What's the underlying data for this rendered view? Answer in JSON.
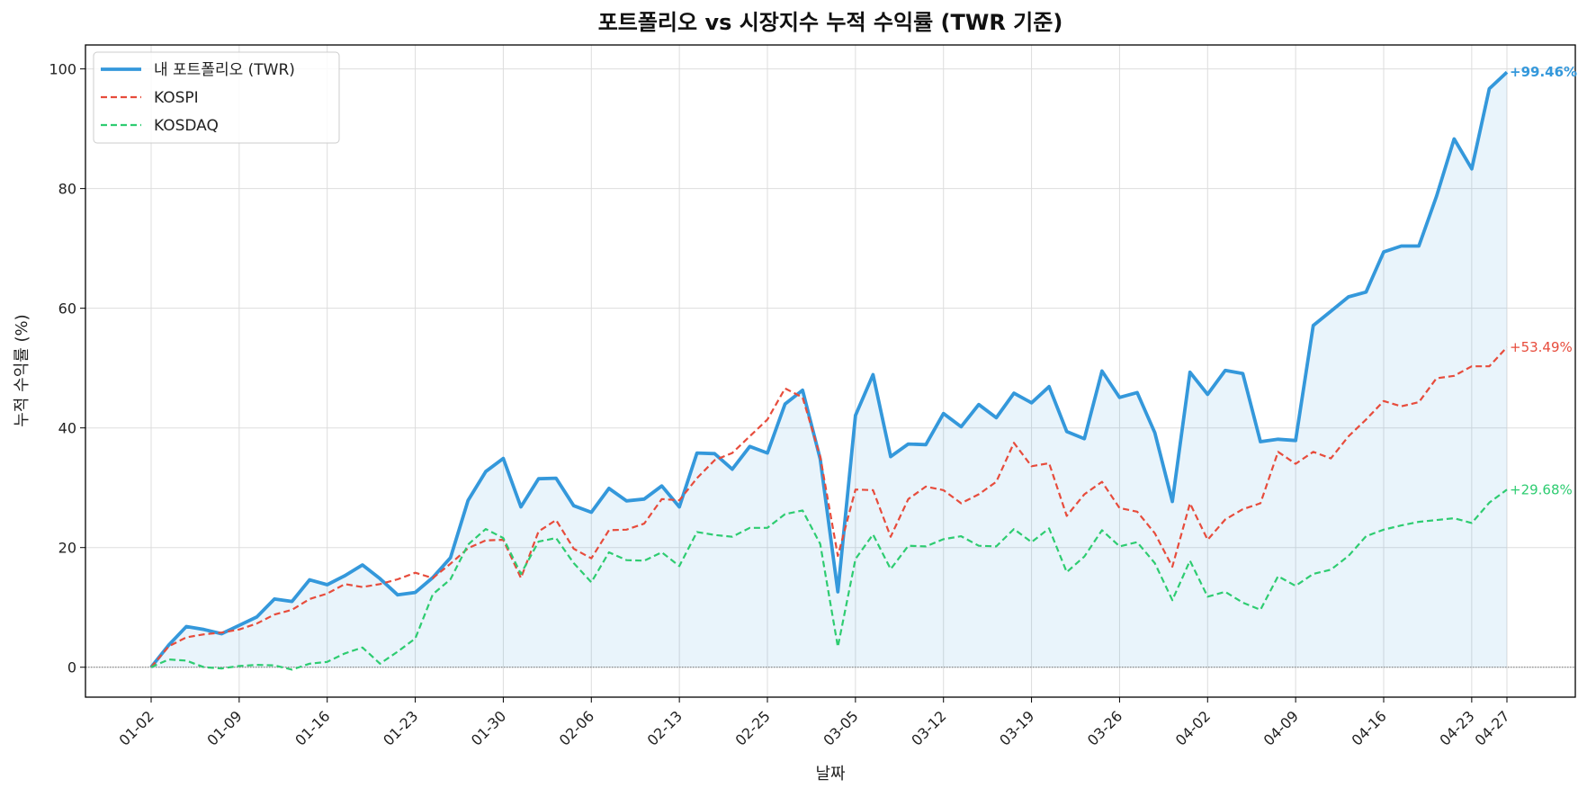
{
  "chart_data": {
    "type": "line",
    "title": "포트폴리오 vs 시장지수 누적 수익률 (TWR 기준)",
    "xlabel": "날짜",
    "ylabel": "누적 수익률 (%)",
    "ylim": [
      -5,
      104
    ],
    "yticks": [
      0,
      20,
      40,
      60,
      80,
      100
    ],
    "grid": true,
    "legend_position": "top-left",
    "baseline_zero": true,
    "xticks": [
      {
        "index": 0,
        "label": "01-02"
      },
      {
        "index": 5,
        "label": "01-09"
      },
      {
        "index": 10,
        "label": "01-16"
      },
      {
        "index": 15,
        "label": "01-23"
      },
      {
        "index": 20,
        "label": "01-30"
      },
      {
        "index": 25,
        "label": "02-06"
      },
      {
        "index": 30,
        "label": "02-13"
      },
      {
        "index": 35,
        "label": "02-25"
      },
      {
        "index": 40,
        "label": "03-05"
      },
      {
        "index": 45,
        "label": "03-12"
      },
      {
        "index": 50,
        "label": "03-19"
      },
      {
        "index": 55,
        "label": "03-26"
      },
      {
        "index": 60,
        "label": "04-02"
      },
      {
        "index": 65,
        "label": "04-09"
      },
      {
        "index": 70,
        "label": "04-16"
      },
      {
        "index": 75,
        "label": "04-23"
      },
      {
        "index": 77,
        "label": "04-27"
      }
    ],
    "series": [
      {
        "name": "내 포트폴리오 (TWR)",
        "color": "#3498db",
        "style": "solid",
        "fill": true,
        "end_label": "+99.46%",
        "values": [
          0,
          3.7,
          6.8,
          6.3,
          5.6,
          7.0,
          8.4,
          11.4,
          11.0,
          14.6,
          13.8,
          15.3,
          17.1,
          14.8,
          12.1,
          12.5,
          15.0,
          18.3,
          27.9,
          32.7,
          34.9,
          26.8,
          31.5,
          31.6,
          27.0,
          25.9,
          29.9,
          27.8,
          28.1,
          30.3,
          26.8,
          35.8,
          35.7,
          33.1,
          36.9,
          35.8,
          44.0,
          46.3,
          34.8,
          12.6,
          42.1,
          48.9,
          35.2,
          37.3,
          37.2,
          42.4,
          40.2,
          43.9,
          41.7,
          45.8,
          44.2,
          46.9,
          39.4,
          38.2,
          49.5,
          45.1,
          45.9,
          39.2,
          27.7,
          49.3,
          45.6,
          49.6,
          49.1,
          37.7,
          38.1,
          37.9,
          57.1,
          59.5,
          61.9,
          62.7,
          69.4,
          70.4,
          70.4,
          78.7,
          88.3,
          83.3,
          96.7,
          99.46
        ]
      },
      {
        "name": "KOSPI",
        "color": "#e74c3c",
        "style": "dashed",
        "end_label": "+53.49%",
        "values": [
          0,
          3.5,
          5.0,
          5.5,
          5.8,
          6.3,
          7.3,
          8.8,
          9.6,
          11.4,
          12.3,
          13.9,
          13.4,
          13.9,
          14.7,
          15.8,
          14.9,
          17.3,
          19.9,
          21.2,
          21.3,
          14.9,
          22.7,
          24.6,
          19.8,
          18.2,
          22.9,
          23.0,
          24.0,
          28.1,
          27.9,
          31.6,
          34.6,
          35.8,
          38.6,
          41.4,
          46.6,
          45.1,
          35.2,
          18.6,
          29.7,
          29.6,
          21.8,
          28.1,
          30.2,
          29.6,
          27.4,
          28.9,
          31.0,
          37.5,
          33.6,
          34.1,
          25.3,
          28.9,
          31.0,
          26.6,
          26.0,
          22.4,
          16.8,
          27.4,
          21.3,
          24.7,
          26.4,
          27.4,
          36.0,
          34.0,
          36.0,
          34.9,
          38.6,
          41.4,
          44.5,
          43.6,
          44.3,
          48.3,
          48.7,
          50.3,
          50.3,
          53.49
        ]
      },
      {
        "name": "KOSDAQ",
        "color": "#2ecc71",
        "style": "dashed",
        "end_label": "+29.68%",
        "values": [
          0,
          1.3,
          1.1,
          0.0,
          -0.2,
          0.2,
          0.4,
          0.3,
          -0.4,
          0.6,
          0.9,
          2.3,
          3.3,
          0.6,
          2.6,
          4.8,
          12.2,
          14.7,
          20.5,
          23.1,
          21.6,
          15.6,
          21.0,
          21.6,
          17.4,
          14.2,
          19.2,
          17.9,
          17.8,
          19.2,
          16.9,
          22.6,
          22.1,
          21.8,
          23.3,
          23.3,
          25.6,
          26.2,
          20.6,
          3.4,
          18.1,
          22.2,
          16.4,
          20.3,
          20.2,
          21.4,
          21.9,
          20.3,
          20.2,
          23.1,
          20.9,
          23.2,
          15.9,
          18.5,
          22.9,
          20.2,
          20.9,
          17.4,
          11.2,
          17.8,
          11.8,
          12.6,
          10.8,
          9.6,
          15.2,
          13.6,
          15.6,
          16.3,
          18.6,
          21.9,
          23.0,
          23.7,
          24.3,
          24.6,
          24.9,
          24.1,
          27.5,
          29.68
        ]
      }
    ]
  }
}
